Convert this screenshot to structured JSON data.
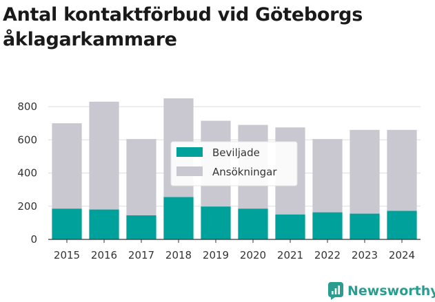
{
  "colors": {
    "beviljade": "#00a19a",
    "ansokningar": "#c9c7d0",
    "grid": "#dddddd",
    "text": "#333333",
    "brand": "#2a9d8f"
  },
  "brand": {
    "name": "Newsworthy",
    "icon": "newsworthy-logo-icon"
  },
  "chart_data": {
    "type": "bar",
    "title": "Antal kontaktförbud vid Göteborgs åklagarkammare",
    "xlabel": "",
    "ylabel": "",
    "categories": [
      "2015",
      "2016",
      "2017",
      "2018",
      "2019",
      "2020",
      "2021",
      "2022",
      "2023",
      "2024"
    ],
    "series": [
      {
        "name": "Beviljade",
        "values": [
          185,
          180,
          145,
          255,
          198,
          185,
          150,
          163,
          155,
          172
        ]
      },
      {
        "name": "Ansökningar",
        "values": [
          700,
          830,
          605,
          850,
          715,
          690,
          675,
          605,
          660,
          660
        ]
      }
    ],
    "overlap": true,
    "ylim": [
      0,
      850
    ],
    "yticks": [
      0,
      200,
      400,
      600,
      800
    ],
    "grid": true,
    "legend_position": "center"
  }
}
